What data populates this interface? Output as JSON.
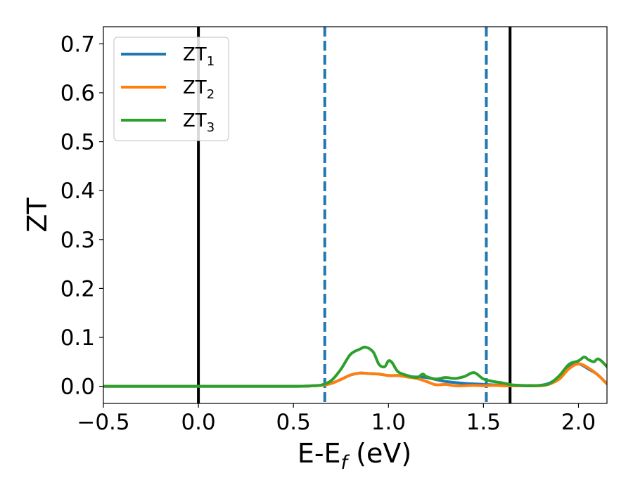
{
  "chart_data": {
    "type": "line",
    "title": "",
    "xlabel": "E-E",
    "xlabel_sub": "f",
    "xlabel_suffix": " (eV)",
    "ylabel": "ZT",
    "xlim": [
      -0.5,
      2.15
    ],
    "ylim": [
      -0.035,
      0.735
    ],
    "xticks": [
      -0.5,
      0.0,
      0.5,
      1.0,
      1.5,
      2.0
    ],
    "xtick_labels": [
      "−0.5",
      "0.0",
      "0.5",
      "1.0",
      "1.5",
      "2.0"
    ],
    "yticks": [
      0.0,
      0.1,
      0.2,
      0.3,
      0.4,
      0.5,
      0.6,
      0.7
    ],
    "ytick_labels": [
      "0.0",
      "0.1",
      "0.2",
      "0.3",
      "0.4",
      "0.5",
      "0.6",
      "0.7"
    ],
    "grid": false,
    "legend_position": "top-left",
    "series": [
      {
        "name": "ZT",
        "subscript": "1",
        "color": "#1f77b4",
        "x": [
          -0.5,
          0.0,
          0.5,
          0.6,
          0.65,
          0.7,
          0.75,
          0.8,
          0.85,
          0.9,
          0.95,
          1.0,
          1.05,
          1.1,
          1.15,
          1.2,
          1.3,
          1.4,
          1.5,
          1.6,
          1.65,
          1.7,
          1.75,
          1.8,
          1.85,
          1.9,
          1.95,
          2.0,
          2.05,
          2.1,
          2.15
        ],
        "y": [
          0.0,
          0.0,
          0.0,
          0.001,
          0.002,
          0.006,
          0.014,
          0.023,
          0.027,
          0.026,
          0.025,
          0.022,
          0.022,
          0.02,
          0.019,
          0.018,
          0.01,
          0.006,
          0.004,
          0.002,
          0.001,
          0.001,
          0.001,
          0.002,
          0.007,
          0.02,
          0.04,
          0.046,
          0.036,
          0.024,
          0.005
        ]
      },
      {
        "name": "ZT",
        "subscript": "2",
        "color": "#ff7f0e",
        "x": [
          -0.5,
          0.0,
          0.5,
          0.6,
          0.65,
          0.7,
          0.75,
          0.8,
          0.85,
          0.9,
          0.95,
          1.0,
          1.05,
          1.1,
          1.15,
          1.2,
          1.25,
          1.3,
          1.35,
          1.4,
          1.45,
          1.5,
          1.55,
          1.6,
          1.65,
          1.7,
          1.75,
          1.8,
          1.85,
          1.9,
          1.95,
          2.0,
          2.05,
          2.1,
          2.15
        ],
        "y": [
          0.0,
          0.0,
          0.0,
          0.001,
          0.002,
          0.006,
          0.014,
          0.023,
          0.027,
          0.026,
          0.025,
          0.022,
          0.022,
          0.019,
          0.016,
          0.01,
          0.003,
          0.004,
          0.001,
          0.001,
          0.002,
          0.001,
          0.002,
          0.001,
          0.001,
          0.001,
          0.002,
          0.001,
          0.005,
          0.015,
          0.036,
          0.046,
          0.038,
          0.024,
          0.005
        ]
      },
      {
        "name": "ZT",
        "subscript": "3",
        "color": "#2ca02c",
        "x": [
          -0.5,
          0.0,
          0.5,
          0.6,
          0.65,
          0.7,
          0.75,
          0.8,
          0.85,
          0.88,
          0.92,
          0.95,
          0.98,
          1.0,
          1.02,
          1.05,
          1.1,
          1.15,
          1.18,
          1.2,
          1.25,
          1.3,
          1.35,
          1.4,
          1.45,
          1.5,
          1.55,
          1.6,
          1.65,
          1.7,
          1.75,
          1.8,
          1.85,
          1.9,
          1.95,
          2.0,
          2.03,
          2.05,
          2.08,
          2.1,
          2.12,
          2.15
        ],
        "y": [
          0.0,
          0.0,
          0.0,
          0.001,
          0.003,
          0.012,
          0.035,
          0.065,
          0.076,
          0.08,
          0.07,
          0.045,
          0.04,
          0.052,
          0.048,
          0.03,
          0.022,
          0.018,
          0.025,
          0.02,
          0.015,
          0.018,
          0.016,
          0.02,
          0.028,
          0.015,
          0.01,
          0.007,
          0.003,
          0.002,
          0.001,
          0.002,
          0.006,
          0.022,
          0.045,
          0.052,
          0.06,
          0.055,
          0.05,
          0.056,
          0.052,
          0.04
        ]
      }
    ],
    "vlines": [
      {
        "x": 0.0,
        "style": "solid",
        "color": "#000000"
      },
      {
        "x": 1.64,
        "style": "solid",
        "color": "#000000"
      },
      {
        "x": 0.665,
        "style": "dashed",
        "color": "#1f77b4"
      },
      {
        "x": 1.515,
        "style": "dashed",
        "color": "#1f77b4"
      }
    ]
  }
}
